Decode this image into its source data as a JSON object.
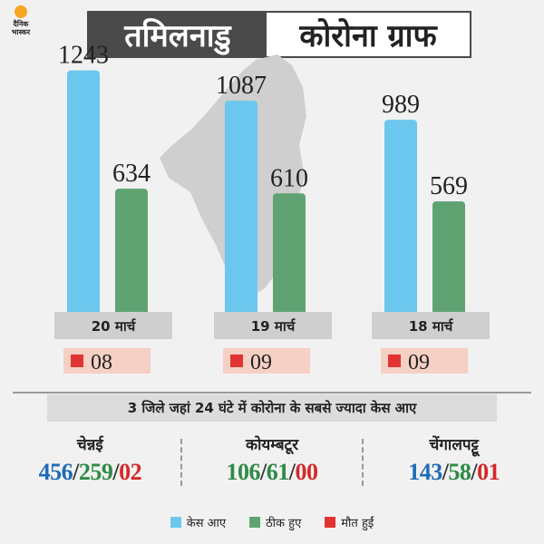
{
  "logo": {
    "line1": "दैनिक",
    "line2": "भास्कर"
  },
  "header": {
    "state": "तमिलनाडु",
    "title": "कोरोना ग्राफ"
  },
  "colors": {
    "cases": "#6cc7ee",
    "recovered": "#5fa372",
    "deaths": "#e23333",
    "header_bg": "#4a4a4a"
  },
  "chart_data": {
    "type": "bar",
    "categories": [
      "20 मार्च",
      "19 मार्च",
      "18 मार्च"
    ],
    "series": [
      {
        "name": "केस आए",
        "values": [
          1243,
          1087,
          989
        ]
      },
      {
        "name": "ठीक हुए",
        "values": [
          634,
          610,
          569
        ]
      }
    ],
    "deaths": [
      "08",
      "09",
      "09"
    ],
    "ylim": [
      0,
      1400
    ]
  },
  "subtitle": "3 जिले जहां 24 घंटे में कोरोना के सबसे ज्यादा केस आए",
  "districts": [
    {
      "name": "चेन्नई",
      "cases": "456",
      "recovered": "259",
      "deaths": "02"
    },
    {
      "name": "कोयम्बटूर",
      "cases": "106",
      "recovered": "61",
      "deaths": "00"
    },
    {
      "name": "चेंगालपट्टू",
      "cases": "143",
      "recovered": "58",
      "deaths": "01"
    }
  ],
  "legend": [
    {
      "label": "केस आए",
      "color": "#6cc7ee"
    },
    {
      "label": "ठीक हुए",
      "color": "#5fa372"
    },
    {
      "label": "मौत हुईं",
      "color": "#e23333"
    }
  ]
}
